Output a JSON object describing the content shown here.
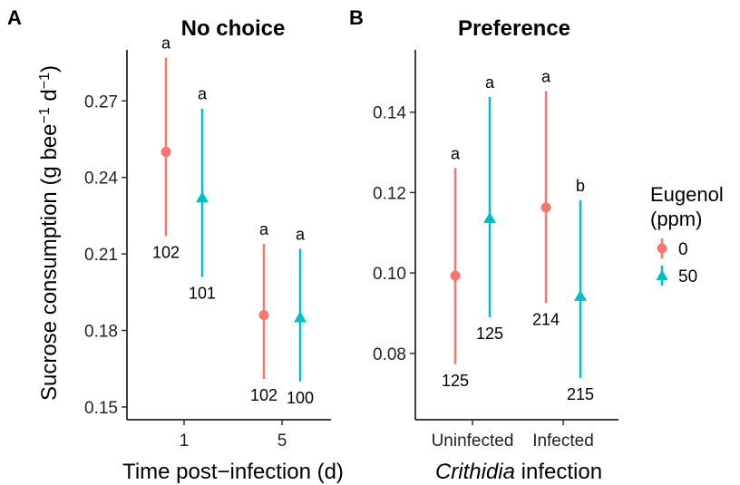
{
  "colors": {
    "eugenol_0": "#F8766D",
    "eugenol_50": "#00BFC4",
    "axis": "#000000"
  },
  "legend": {
    "title_line1": "Eugenol",
    "title_line2": "(ppm)",
    "items": [
      {
        "label": "0",
        "color": "#F8766D",
        "shape": "circle"
      },
      {
        "label": "50",
        "color": "#00BFC4",
        "shape": "triangle"
      }
    ]
  },
  "y_axis_label": "Sucrose consumption (g bee",
  "y_axis_sup1": "−1",
  "y_axis_mid": " d",
  "y_axis_sup2": "−1",
  "y_axis_end": ")",
  "chart_data": [
    {
      "panel": "A",
      "type": "scatter",
      "title": "No choice",
      "xlabel": "Time post−infection (d)",
      "categories": [
        "1",
        "5"
      ],
      "ylim": [
        0.145,
        0.29
      ],
      "yticks": [
        0.15,
        0.18,
        0.21,
        0.24,
        0.27
      ],
      "ytick_labels": [
        "0.15",
        "0.18",
        "0.21",
        "0.24",
        "0.27"
      ],
      "series": [
        {
          "name": "0",
          "values": [
            0.25,
            0.186
          ],
          "lower": [
            0.217,
            0.161
          ],
          "upper": [
            0.287,
            0.214
          ],
          "sample_sizes": [
            "102",
            "102"
          ],
          "letters": [
            "a",
            "a"
          ]
        },
        {
          "name": "50",
          "values": [
            0.232,
            0.185
          ],
          "lower": [
            0.201,
            0.16
          ],
          "upper": [
            0.267,
            0.212
          ],
          "sample_sizes": [
            "101",
            "100"
          ],
          "letters": [
            "a",
            "a"
          ]
        }
      ]
    },
    {
      "panel": "B",
      "type": "scatter",
      "title": "Preference",
      "xlabel_italic": "Crithidia",
      "xlabel_rest": " infection",
      "categories": [
        "Uninfected",
        "Infected"
      ],
      "ylim": [
        0.0635,
        0.1555
      ],
      "yticks": [
        0.08,
        0.1,
        0.12,
        0.14
      ],
      "ytick_labels": [
        "0.08",
        "0.10",
        "0.12",
        "0.14"
      ],
      "series": [
        {
          "name": "0",
          "values": [
            0.0993,
            0.1163
          ],
          "lower": [
            0.0773,
            0.0925
          ],
          "upper": [
            0.1261,
            0.1452
          ],
          "sample_sizes": [
            "125",
            "214"
          ],
          "letters": [
            "a",
            "a"
          ]
        },
        {
          "name": "50",
          "values": [
            0.1136,
            0.0942
          ],
          "lower": [
            0.089,
            0.0739
          ],
          "upper": [
            0.1438,
            0.1181
          ],
          "sample_sizes": [
            "125",
            "215"
          ],
          "letters": [
            "a",
            "b"
          ]
        }
      ]
    }
  ]
}
